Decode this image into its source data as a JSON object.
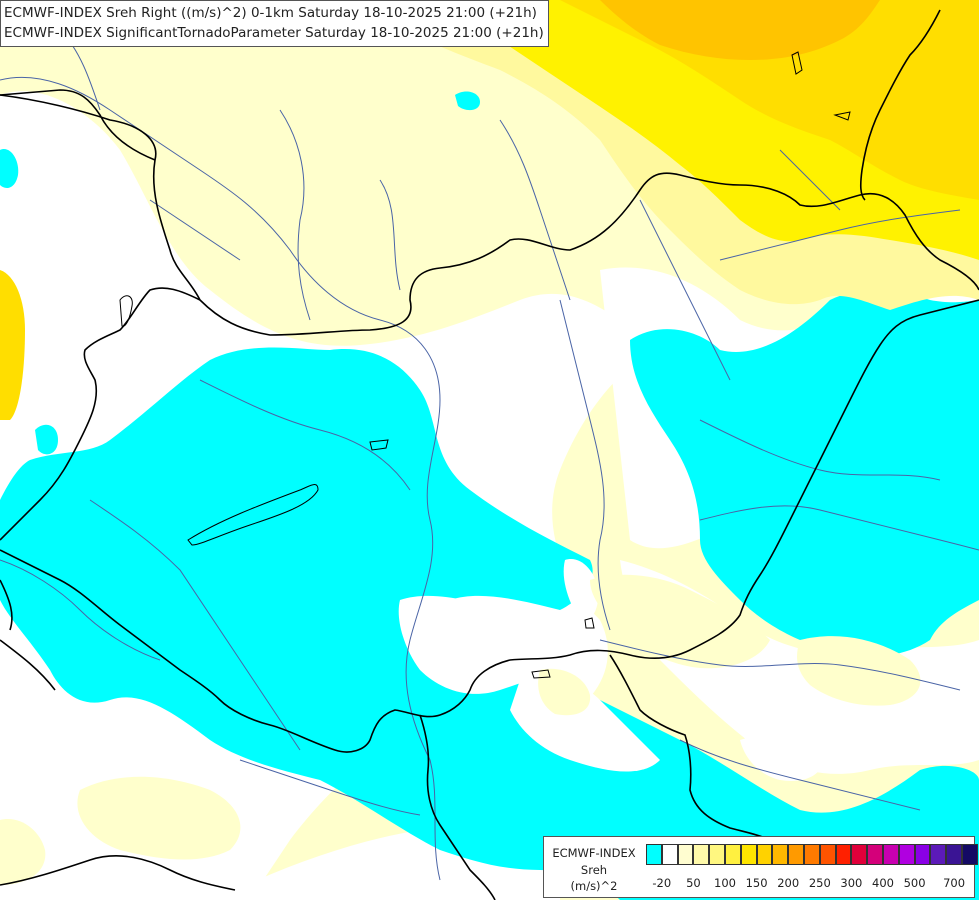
{
  "header": {
    "line1": "ECMWF-INDEX Sreh Right ((m/s)^2) 0-1km Saturday 18-10-2025 21:00 (+21h)",
    "line2": "ECMWF-INDEX SignificantTornadoParameter Saturday 18-10-2025 21:00 (+21h)"
  },
  "legend": {
    "title_lines": [
      "ECMWF-INDEX",
      "Sreh",
      "(m/s)^2"
    ],
    "colors": [
      "#00ffff",
      "#ffffff",
      "#fffdd0",
      "#fffaaa",
      "#fff780",
      "#fff040",
      "#ffe500",
      "#ffd200",
      "#ffb800",
      "#ff9a00",
      "#ff7a00",
      "#ff5400",
      "#ff2000",
      "#e0003a",
      "#d4007a",
      "#c800b0",
      "#b000e0",
      "#8a00e6",
      "#5c1ab8",
      "#3a1494",
      "#140a64"
    ],
    "tick_labels": [
      "-20",
      "50",
      "100",
      "150",
      "200",
      "250",
      "300",
      "400",
      "500",
      "700"
    ]
  },
  "map": {
    "colors": {
      "cyan": "#00ffff",
      "pale": "#ffffcc",
      "light_yellow": "#fff99e",
      "yellow": "#fff200",
      "dark_yellow": "#ffde00",
      "orange": "#ffc400",
      "border": "#000000",
      "river": "#4a64a6"
    }
  }
}
